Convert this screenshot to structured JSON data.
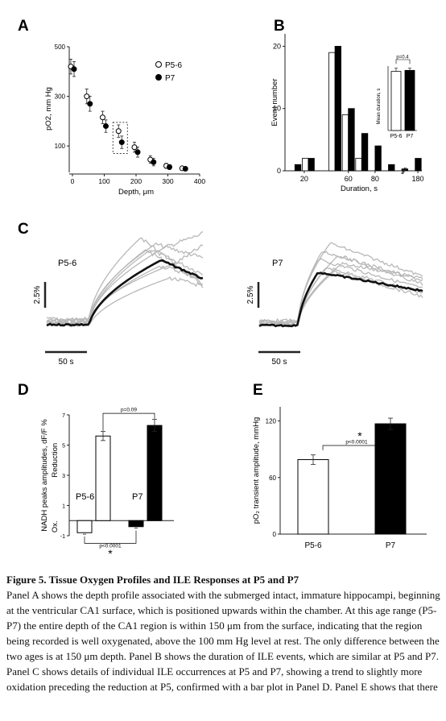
{
  "panels": {
    "A": "A",
    "B": "B",
    "C": "C",
    "D": "D",
    "E": "E"
  },
  "colors": {
    "p56": "#ffffff",
    "p7": "#000000",
    "traces": "#b8b8b8",
    "mean": "#111111"
  },
  "chart_data": [
    {
      "panel": "A",
      "type": "scatter",
      "xlabel": "Depth, μm",
      "ylabel": "pO2, mm Hg",
      "xlim": [
        0,
        400
      ],
      "ylim": [
        0,
        500
      ],
      "xticks": [
        "0",
        "100",
        "200",
        "300",
        "400"
      ],
      "yticks": [
        "100",
        "300",
        "500"
      ],
      "legend": {
        "placement": "top-right",
        "entries": [
          "P5-6",
          "P7"
        ]
      },
      "series": [
        {
          "name": "P5-6",
          "x": [
            0,
            50,
            100,
            150,
            200,
            250,
            300,
            350
          ],
          "y": [
            420,
            300,
            215,
            160,
            95,
            45,
            20,
            10
          ],
          "err": [
            30,
            30,
            25,
            25,
            20,
            15,
            10,
            8
          ]
        },
        {
          "name": "P7",
          "x": [
            0,
            50,
            100,
            150,
            200,
            250,
            300,
            350
          ],
          "y": [
            410,
            270,
            180,
            115,
            75,
            35,
            15,
            8
          ],
          "err": [
            30,
            30,
            25,
            25,
            20,
            15,
            10,
            8
          ]
        }
      ],
      "highlight_depth": 150
    },
    {
      "panel": "B",
      "type": "bar",
      "xlabel": "Duration, s",
      "ylabel": "Event number",
      "ylim": [
        0,
        22
      ],
      "yticks": [
        "0",
        "10",
        "20"
      ],
      "xtick_labels": [
        {
          "label": "20",
          "x": 20
        },
        {
          "label": "60",
          "x": 60
        },
        {
          "label": "80",
          "x": 80
        },
        {
          "label": "180",
          "x": 180
        }
      ],
      "bins": [
        {
          "x": 15,
          "p56": 0,
          "p7": 1
        },
        {
          "x": 25,
          "p56": 2,
          "p7": 2
        },
        {
          "x": 45,
          "p56": 19,
          "p7": 20
        },
        {
          "x": 55,
          "p56": 9,
          "p7": 10
        },
        {
          "x": 65,
          "p56": 2,
          "p7": 6
        },
        {
          "x": 75,
          "p56": 0,
          "p7": 4
        },
        {
          "x": 85,
          "p56": 0,
          "p7": 1
        },
        {
          "x": 95,
          "p56": 0,
          "p7": 0.3
        },
        {
          "x": 105,
          "p56": 0,
          "p7": 2
        }
      ],
      "inset": {
        "ylabel": "Mean duration, s",
        "categories": [
          "P5-6",
          "P7"
        ],
        "values": [
          55,
          56
        ],
        "err": [
          3,
          2
        ],
        "p_text": "p=0.4"
      }
    },
    {
      "panel": "C",
      "type": "line",
      "left_label": "P5-6",
      "right_label": "P7",
      "scale_y": "2.5%",
      "scale_x": "50 s"
    },
    {
      "panel": "D",
      "type": "bar",
      "ylabel": "NADH peaks amplitudes, dF/F %",
      "reduction_label": "Reduction",
      "ox_label": "Ox.",
      "ylim": [
        -1,
        7
      ],
      "yticks": [
        "-1",
        "1",
        "3",
        "5",
        "7"
      ],
      "groups": [
        {
          "name": "P5-6",
          "ox": -0.8,
          "ox_err": 0.1,
          "red": 5.6,
          "red_err": 0.3
        },
        {
          "name": "P7",
          "ox": -0.4,
          "ox_err": 0.1,
          "red": 6.3,
          "red_err": 0.4
        }
      ],
      "p_top": "p=0.09",
      "p_bottom": "p<0.0001",
      "star": "*"
    },
    {
      "panel": "E",
      "type": "bar",
      "ylabel": "pO₂ transient amplitude, mmHg",
      "ylim": [
        0,
        135
      ],
      "yticks": [
        "0",
        "60",
        "120"
      ],
      "categories": [
        "P5-6",
        "P7"
      ],
      "values": [
        79,
        117
      ],
      "err": [
        5,
        6
      ],
      "p_text": "p<0.0001",
      "star": "*"
    }
  ],
  "caption": {
    "title": "Figure 5. Tissue Oxygen Profiles and ILE Responses at P5 and P7",
    "body": "Panel A shows the depth profile associated with the submerged intact, immature hippocampi, beginning at the ventricular CA1 surface, which is positioned upwards within the chamber. At this age range (P5-P7) the entire depth of the CA1 region is within 150 μm from the surface, indicating that the region being recorded is well oxygenated, above the 100 mm Hg level at rest. The only difference between the two ages is at 150 μm depth. Panel B shows the duration of ILE events, which are similar at P5 and P7. Panel C shows details of individual ILE occurrences at P5 and P7, showing a trend to slightly more oxidation preceding the reduction at P5, confirmed with a bar plot in Panel D. Panel E shows that there"
  }
}
